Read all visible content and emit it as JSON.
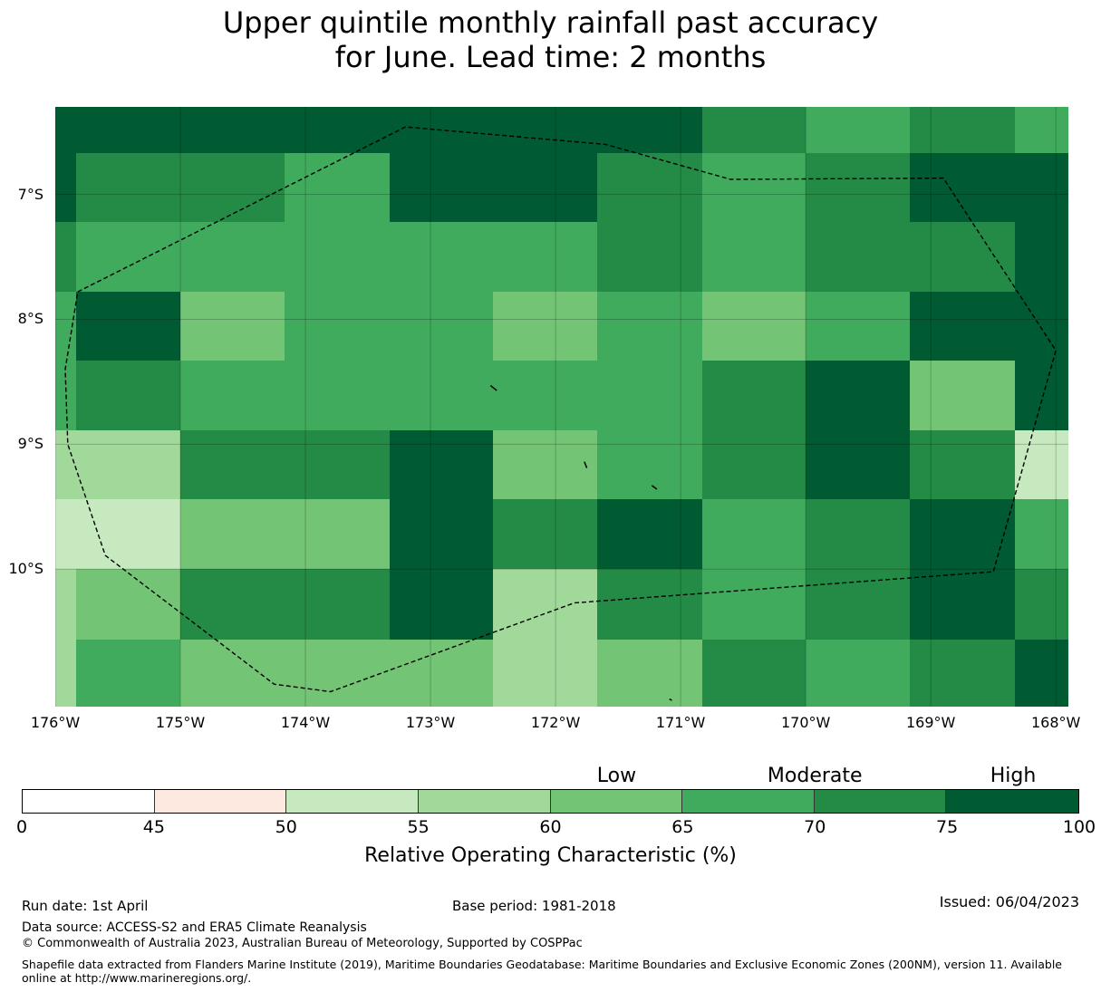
{
  "title_line1": "Upper quintile monthly rainfall past accuracy",
  "title_line2": "for June. Lead time: 2 months",
  "map": {
    "lon_min": -176,
    "lon_max": -167.9,
    "lat_top": -6.3,
    "lat_bottom": -11.1,
    "lat_labels": [
      {
        "lat": -7,
        "text": "7°S"
      },
      {
        "lat": -8,
        "text": "8°S"
      },
      {
        "lat": -9,
        "text": "9°S"
      },
      {
        "lat": -10,
        "text": "10°S"
      }
    ],
    "lon_labels": [
      {
        "lon": -176,
        "text": "176°W"
      },
      {
        "lon": -175,
        "text": "175°W"
      },
      {
        "lon": -174,
        "text": "174°W"
      },
      {
        "lon": -173,
        "text": "173°W"
      },
      {
        "lon": -172,
        "text": "172°W"
      },
      {
        "lon": -171,
        "text": "171°W"
      },
      {
        "lon": -170,
        "text": "170°W"
      },
      {
        "lon": -169,
        "text": "169°W"
      },
      {
        "lon": -168,
        "text": "168°W"
      }
    ],
    "cells": [
      {
        "lon0": -176.0,
        "lon1": -170.83,
        "lat0": -6.3,
        "lat1": -6.67,
        "bin": 7
      },
      {
        "lon0": -170.83,
        "lon1": -170.0,
        "lat0": -6.3,
        "lat1": -6.67,
        "bin": 6
      },
      {
        "lon0": -170.0,
        "lon1": -169.17,
        "lat0": -6.3,
        "lat1": -6.67,
        "bin": 5
      },
      {
        "lon0": -169.17,
        "lon1": -168.33,
        "lat0": -6.3,
        "lat1": -6.67,
        "bin": 6
      },
      {
        "lon0": -168.33,
        "lon1": -167.9,
        "lat0": -6.3,
        "lat1": -6.67,
        "bin": 5
      },
      {
        "lon0": -176.0,
        "lon1": -175.83,
        "lat0": -6.67,
        "lat1": -7.22,
        "bin": 7
      },
      {
        "lon0": -175.83,
        "lon1": -174.17,
        "lat0": -6.67,
        "lat1": -7.22,
        "bin": 6
      },
      {
        "lon0": -174.17,
        "lon1": -173.33,
        "lat0": -6.67,
        "lat1": -7.22,
        "bin": 5
      },
      {
        "lon0": -173.33,
        "lon1": -171.67,
        "lat0": -6.67,
        "lat1": -7.22,
        "bin": 7
      },
      {
        "lon0": -171.67,
        "lon1": -170.83,
        "lat0": -6.67,
        "lat1": -7.22,
        "bin": 6
      },
      {
        "lon0": -170.83,
        "lon1": -170.0,
        "lat0": -6.67,
        "lat1": -7.22,
        "bin": 5
      },
      {
        "lon0": -170.0,
        "lon1": -169.17,
        "lat0": -6.67,
        "lat1": -7.22,
        "bin": 6
      },
      {
        "lon0": -169.17,
        "lon1": -167.9,
        "lat0": -6.67,
        "lat1": -7.22,
        "bin": 7
      },
      {
        "lon0": -176.0,
        "lon1": -175.83,
        "lat0": -7.22,
        "lat1": -7.78,
        "bin": 6
      },
      {
        "lon0": -175.83,
        "lon1": -171.67,
        "lat0": -7.22,
        "lat1": -7.78,
        "bin": 5
      },
      {
        "lon0": -171.67,
        "lon1": -170.83,
        "lat0": -7.22,
        "lat1": -7.78,
        "bin": 6
      },
      {
        "lon0": -170.83,
        "lon1": -170.0,
        "lat0": -7.22,
        "lat1": -7.78,
        "bin": 5
      },
      {
        "lon0": -170.0,
        "lon1": -168.33,
        "lat0": -7.22,
        "lat1": -7.78,
        "bin": 6
      },
      {
        "lon0": -168.33,
        "lon1": -167.9,
        "lat0": -7.22,
        "lat1": -7.78,
        "bin": 7
      },
      {
        "lon0": -176.0,
        "lon1": -175.83,
        "lat0": -7.78,
        "lat1": -8.33,
        "bin": 5
      },
      {
        "lon0": -175.83,
        "lon1": -175.0,
        "lat0": -7.78,
        "lat1": -8.33,
        "bin": 7
      },
      {
        "lon0": -175.0,
        "lon1": -174.17,
        "lat0": -7.78,
        "lat1": -8.33,
        "bin": 4
      },
      {
        "lon0": -174.17,
        "lon1": -172.5,
        "lat0": -7.78,
        "lat1": -8.33,
        "bin": 5
      },
      {
        "lon0": -172.5,
        "lon1": -171.67,
        "lat0": -7.78,
        "lat1": -8.33,
        "bin": 4
      },
      {
        "lon0": -171.67,
        "lon1": -170.83,
        "lat0": -7.78,
        "lat1": -8.33,
        "bin": 5
      },
      {
        "lon0": -170.83,
        "lon1": -170.0,
        "lat0": -7.78,
        "lat1": -8.33,
        "bin": 4
      },
      {
        "lon0": -170.0,
        "lon1": -169.17,
        "lat0": -7.78,
        "lat1": -8.33,
        "bin": 5
      },
      {
        "lon0": -169.17,
        "lon1": -167.9,
        "lat0": -7.78,
        "lat1": -8.33,
        "bin": 7
      },
      {
        "lon0": -176.0,
        "lon1": -175.83,
        "lat0": -8.33,
        "lat1": -8.89,
        "bin": 5
      },
      {
        "lon0": -175.83,
        "lon1": -175.0,
        "lat0": -8.33,
        "lat1": -8.89,
        "bin": 6
      },
      {
        "lon0": -175.0,
        "lon1": -170.83,
        "lat0": -8.33,
        "lat1": -8.89,
        "bin": 5
      },
      {
        "lon0": -170.83,
        "lon1": -170.0,
        "lat0": -8.33,
        "lat1": -8.89,
        "bin": 6
      },
      {
        "lon0": -170.0,
        "lon1": -169.17,
        "lat0": -8.33,
        "lat1": -8.89,
        "bin": 7
      },
      {
        "lon0": -169.17,
        "lon1": -168.33,
        "lat0": -8.33,
        "lat1": -8.89,
        "bin": 4
      },
      {
        "lon0": -168.33,
        "lon1": -167.9,
        "lat0": -8.33,
        "lat1": -8.89,
        "bin": 7
      },
      {
        "lon0": -176.0,
        "lon1": -175.0,
        "lat0": -8.89,
        "lat1": -9.44,
        "bin": 3
      },
      {
        "lon0": -175.0,
        "lon1": -173.33,
        "lat0": -8.89,
        "lat1": -9.44,
        "bin": 6
      },
      {
        "lon0": -173.33,
        "lon1": -172.5,
        "lat0": -8.89,
        "lat1": -9.44,
        "bin": 7
      },
      {
        "lon0": -172.5,
        "lon1": -171.67,
        "lat0": -8.89,
        "lat1": -9.44,
        "bin": 4
      },
      {
        "lon0": -171.67,
        "lon1": -170.83,
        "lat0": -8.89,
        "lat1": -9.44,
        "bin": 5
      },
      {
        "lon0": -170.83,
        "lon1": -170.0,
        "lat0": -8.89,
        "lat1": -9.44,
        "bin": 6
      },
      {
        "lon0": -170.0,
        "lon1": -169.17,
        "lat0": -8.89,
        "lat1": -9.44,
        "bin": 7
      },
      {
        "lon0": -169.17,
        "lon1": -168.33,
        "lat0": -8.89,
        "lat1": -9.44,
        "bin": 6
      },
      {
        "lon0": -168.33,
        "lon1": -167.9,
        "lat0": -8.89,
        "lat1": -9.44,
        "bin": 2
      },
      {
        "lon0": -176.0,
        "lon1": -175.0,
        "lat0": -9.44,
        "lat1": -10.0,
        "bin": 2
      },
      {
        "lon0": -175.0,
        "lon1": -173.33,
        "lat0": -9.44,
        "lat1": -10.0,
        "bin": 4
      },
      {
        "lon0": -173.33,
        "lon1": -172.5,
        "lat0": -9.44,
        "lat1": -10.0,
        "bin": 7
      },
      {
        "lon0": -172.5,
        "lon1": -171.67,
        "lat0": -9.44,
        "lat1": -10.0,
        "bin": 6
      },
      {
        "lon0": -171.67,
        "lon1": -170.83,
        "lat0": -9.44,
        "lat1": -10.0,
        "bin": 7
      },
      {
        "lon0": -170.83,
        "lon1": -170.0,
        "lat0": -9.44,
        "lat1": -10.0,
        "bin": 5
      },
      {
        "lon0": -170.0,
        "lon1": -169.17,
        "lat0": -9.44,
        "lat1": -10.0,
        "bin": 6
      },
      {
        "lon0": -169.17,
        "lon1": -168.33,
        "lat0": -9.44,
        "lat1": -10.0,
        "bin": 7
      },
      {
        "lon0": -168.33,
        "lon1": -167.9,
        "lat0": -9.44,
        "lat1": -10.0,
        "bin": 5
      },
      {
        "lon0": -176.0,
        "lon1": -175.83,
        "lat0": -10.0,
        "lat1": -10.56,
        "bin": 3
      },
      {
        "lon0": -175.83,
        "lon1": -175.0,
        "lat0": -10.0,
        "lat1": -10.56,
        "bin": 4
      },
      {
        "lon0": -175.0,
        "lon1": -173.33,
        "lat0": -10.0,
        "lat1": -10.56,
        "bin": 6
      },
      {
        "lon0": -173.33,
        "lon1": -172.5,
        "lat0": -10.0,
        "lat1": -10.56,
        "bin": 7
      },
      {
        "lon0": -172.5,
        "lon1": -171.67,
        "lat0": -10.0,
        "lat1": -10.56,
        "bin": 3
      },
      {
        "lon0": -171.67,
        "lon1": -170.83,
        "lat0": -10.0,
        "lat1": -10.56,
        "bin": 6
      },
      {
        "lon0": -170.83,
        "lon1": -170.0,
        "lat0": -10.0,
        "lat1": -10.56,
        "bin": 5
      },
      {
        "lon0": -170.0,
        "lon1": -169.17,
        "lat0": -10.0,
        "lat1": -10.56,
        "bin": 6
      },
      {
        "lon0": -169.17,
        "lon1": -168.33,
        "lat0": -10.0,
        "lat1": -10.56,
        "bin": 7
      },
      {
        "lon0": -168.33,
        "lon1": -167.9,
        "lat0": -10.0,
        "lat1": -10.56,
        "bin": 6
      },
      {
        "lon0": -176.0,
        "lon1": -175.83,
        "lat0": -10.56,
        "lat1": -11.1,
        "bin": 3
      },
      {
        "lon0": -175.83,
        "lon1": -175.0,
        "lat0": -10.56,
        "lat1": -11.1,
        "bin": 5
      },
      {
        "lon0": -175.0,
        "lon1": -172.5,
        "lat0": -10.56,
        "lat1": -11.1,
        "bin": 4
      },
      {
        "lon0": -172.5,
        "lon1": -171.67,
        "lat0": -10.56,
        "lat1": -11.1,
        "bin": 3
      },
      {
        "lon0": -171.67,
        "lon1": -170.83,
        "lat0": -10.56,
        "lat1": -11.1,
        "bin": 4
      },
      {
        "lon0": -170.83,
        "lon1": -170.0,
        "lat0": -10.56,
        "lat1": -11.1,
        "bin": 6
      },
      {
        "lon0": -170.0,
        "lon1": -169.17,
        "lat0": -10.56,
        "lat1": -11.1,
        "bin": 5
      },
      {
        "lon0": -169.17,
        "lon1": -168.33,
        "lat0": -10.56,
        "lat1": -11.1,
        "bin": 6
      },
      {
        "lon0": -168.33,
        "lon1": -167.9,
        "lat0": -10.56,
        "lat1": -11.1,
        "bin": 7
      }
    ],
    "boundary": [
      [
        -175.82,
        -7.78
      ],
      [
        -173.2,
        -6.46
      ],
      [
        -171.6,
        -6.6
      ],
      [
        -170.6,
        -6.88
      ],
      [
        -168.9,
        -6.87
      ],
      [
        -168.0,
        -8.25
      ],
      [
        -168.5,
        -10.02
      ],
      [
        -171.85,
        -10.27
      ],
      [
        -173.8,
        -10.98
      ],
      [
        -174.25,
        -10.92
      ],
      [
        -175.6,
        -9.89
      ],
      [
        -175.9,
        -9.0
      ],
      [
        -175.92,
        -8.4
      ],
      [
        -175.82,
        -7.78
      ]
    ],
    "islands": [
      [
        [
          -172.52,
          -8.53
        ],
        [
          -172.47,
          -8.57
        ]
      ],
      [
        [
          -171.77,
          -9.14
        ],
        [
          -171.75,
          -9.19
        ]
      ],
      [
        [
          -171.23,
          -9.33
        ],
        [
          -171.19,
          -9.36
        ]
      ],
      [
        [
          -171.09,
          -11.04
        ],
        [
          -171.07,
          -11.05
        ]
      ]
    ]
  },
  "colorbar": {
    "bins": [
      {
        "lo": 0,
        "hi": 45,
        "color": "#ffffff"
      },
      {
        "lo": 45,
        "hi": 50,
        "color": "#fee9e1"
      },
      {
        "lo": 50,
        "hi": 55,
        "color": "#c7e9c0"
      },
      {
        "lo": 55,
        "hi": 60,
        "color": "#a1d99b"
      },
      {
        "lo": 60,
        "hi": 65,
        "color": "#74c476"
      },
      {
        "lo": 65,
        "hi": 70,
        "color": "#41ab5d"
      },
      {
        "lo": 70,
        "hi": 75,
        "color": "#238b45"
      },
      {
        "lo": 75,
        "hi": 100,
        "color": "#005a32"
      }
    ],
    "ticks": [
      "0",
      "45",
      "50",
      "55",
      "60",
      "65",
      "70",
      "75",
      "100"
    ],
    "categories": [
      {
        "label": "Low",
        "at": 4
      },
      {
        "label": "Moderate",
        "at": 5.5
      },
      {
        "label": "High",
        "at": 7
      }
    ],
    "title": "Relative Operating Characteristic (%)"
  },
  "footer": {
    "run_date": "Run date: 1st April",
    "base_period": "Base period: 1981-2018",
    "issued": "Issued: 06/04/2023",
    "data_source": "Data source: ACCESS-S2 and ERA5 Climate Reanalysis",
    "copyright": "© Commonwealth of Australia 2023, Australian Bureau of Meteorology, Supported by COSPPac",
    "shapefile_note": "Shapefile data extracted from Flanders Marine Institute (2019), Maritime Boundaries Geodatabase: Maritime Boundaries and Exclusive Economic Zones (200NM), version 11. Available online at http://www.marineregions.org/."
  }
}
